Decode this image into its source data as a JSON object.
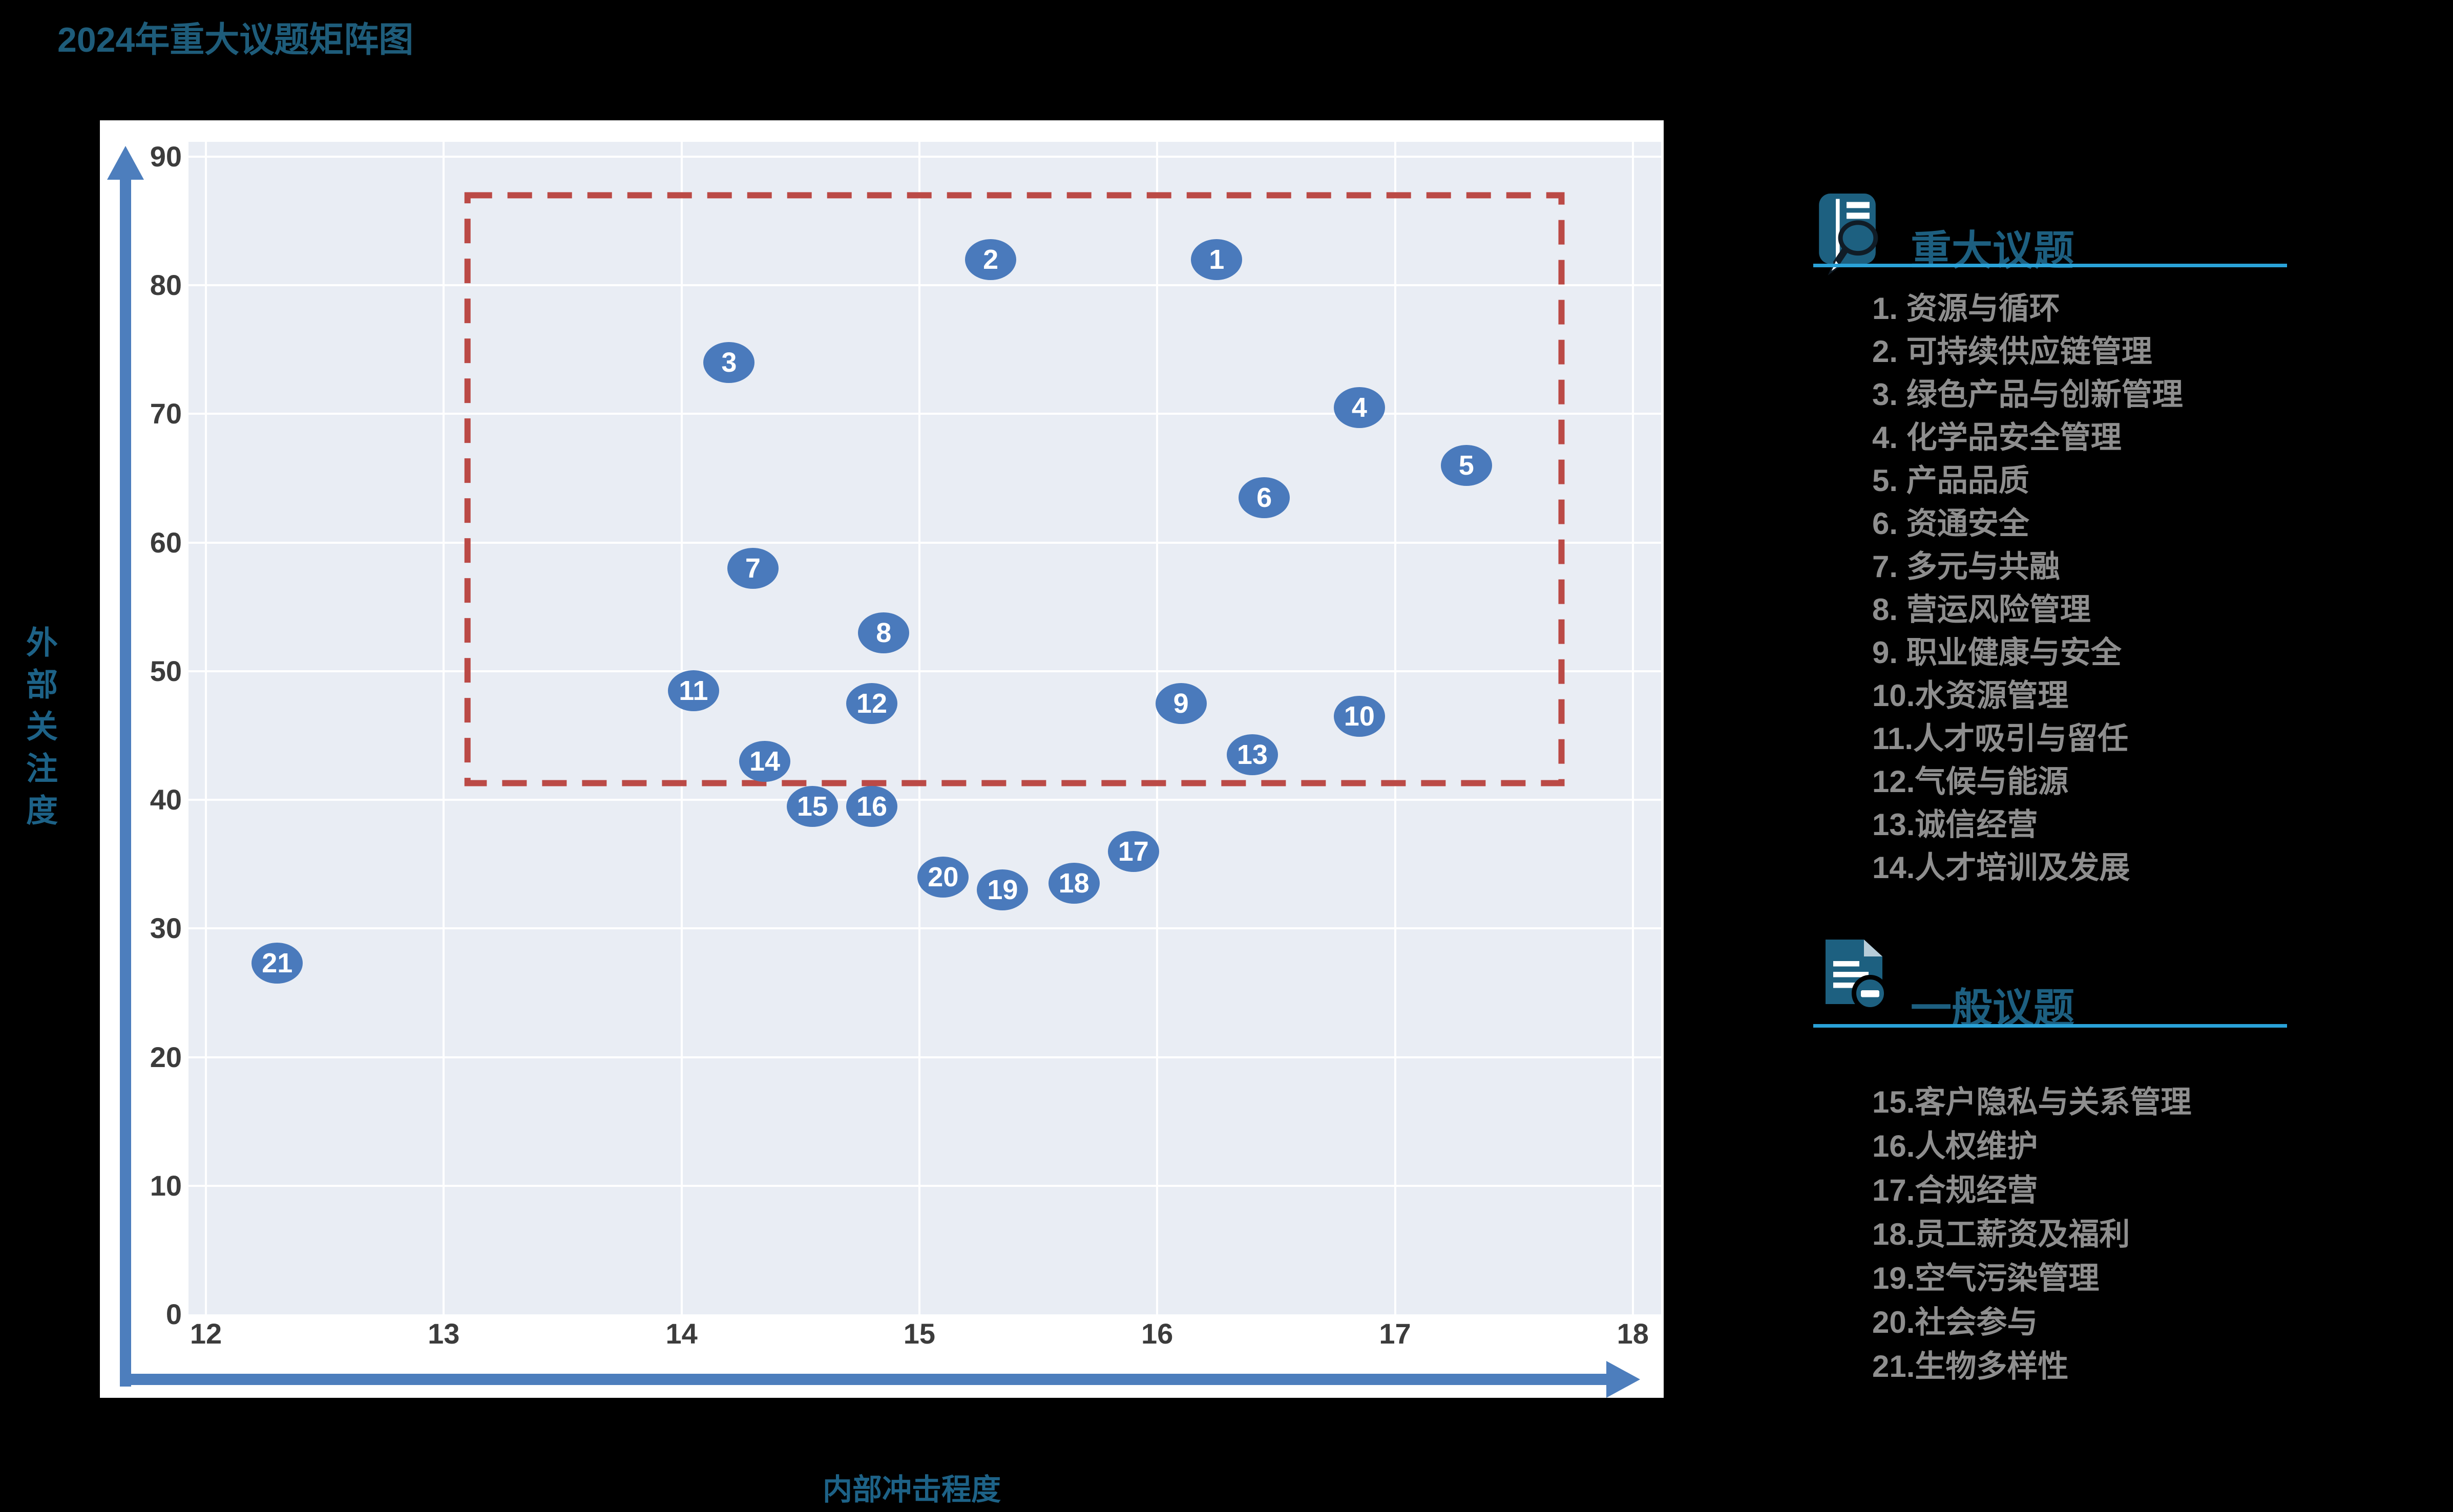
{
  "page_title": "2024年重大议题矩阵图",
  "chart_data": {
    "type": "scatter",
    "title": "2024年重大议题矩阵图",
    "xlabel": "内部冲击程度",
    "ylabel": "外部关注度",
    "xlim": [
      12,
      18
    ],
    "ylim": [
      0,
      90
    ],
    "x_ticks": [
      12,
      13,
      14,
      15,
      16,
      17,
      18
    ],
    "y_ticks": [
      0,
      10,
      20,
      30,
      40,
      50,
      60,
      70,
      80,
      90
    ],
    "grid": true,
    "legend_position": "right",
    "highlight_box": {
      "x_min": 13.1,
      "x_max": 17.7,
      "y_min": 41.3,
      "y_max": 87,
      "style": "dashed",
      "color": "#bb4a46"
    },
    "points": [
      {
        "n": 1,
        "label": "资源与循环",
        "x": 16.25,
        "y": 82
      },
      {
        "n": 2,
        "label": "可持续供应链管理",
        "x": 15.3,
        "y": 82
      },
      {
        "n": 3,
        "label": "绿色产品与创新管理",
        "x": 14.2,
        "y": 74
      },
      {
        "n": 4,
        "label": "化学品安全管理",
        "x": 16.85,
        "y": 70.5
      },
      {
        "n": 5,
        "label": "产品品质",
        "x": 17.3,
        "y": 66
      },
      {
        "n": 6,
        "label": "资通安全",
        "x": 16.45,
        "y": 63.5
      },
      {
        "n": 7,
        "label": "多元与共融",
        "x": 14.3,
        "y": 58
      },
      {
        "n": 8,
        "label": "营运风险管理",
        "x": 14.85,
        "y": 53
      },
      {
        "n": 9,
        "label": "职业健康与安全",
        "x": 16.1,
        "y": 47.5
      },
      {
        "n": 10,
        "label": "水资源管理",
        "x": 16.85,
        "y": 46.5
      },
      {
        "n": 11,
        "label": "人才吸引与留任",
        "x": 14.05,
        "y": 48.5
      },
      {
        "n": 12,
        "label": "气候与能源",
        "x": 14.8,
        "y": 47.5
      },
      {
        "n": 13,
        "label": "诚信经营",
        "x": 16.4,
        "y": 43.5
      },
      {
        "n": 14,
        "label": "人才培训及发展",
        "x": 14.35,
        "y": 43
      },
      {
        "n": 15,
        "label": "客户隐私与关系管理",
        "x": 14.55,
        "y": 39.5
      },
      {
        "n": 16,
        "label": "人权维护",
        "x": 14.8,
        "y": 39.5
      },
      {
        "n": 17,
        "label": "合规经营",
        "x": 15.9,
        "y": 36
      },
      {
        "n": 18,
        "label": "员工薪资及福利",
        "x": 15.65,
        "y": 33.5
      },
      {
        "n": 19,
        "label": "空气污染管理",
        "x": 15.35,
        "y": 33
      },
      {
        "n": 20,
        "label": "社会参与",
        "x": 15.1,
        "y": 34
      },
      {
        "n": 21,
        "label": "生物多样性",
        "x": 12.3,
        "y": 27.3
      }
    ]
  },
  "legend": {
    "major": {
      "header": "重大议题",
      "icon": "document-magnifier-icon",
      "items": [
        {
          "num": 1,
          "label": "资源与循环"
        },
        {
          "num": 2,
          "label": "可持续供应链管理"
        },
        {
          "num": 3,
          "label": "绿色产品与创新管理"
        },
        {
          "num": 4,
          "label": "化学品安全管理"
        },
        {
          "num": 5,
          "label": "产品品质"
        },
        {
          "num": 6,
          "label": "资通安全"
        },
        {
          "num": 7,
          "label": "多元与共融"
        },
        {
          "num": 8,
          "label": "营运风险管理"
        },
        {
          "num": 9,
          "label": "职业健康与安全"
        },
        {
          "num": 10,
          "label": "水资源管理"
        },
        {
          "num": 11,
          "label": "人才吸引与留任"
        },
        {
          "num": 12,
          "label": "气候与能源"
        },
        {
          "num": 13,
          "label": "诚信经营"
        },
        {
          "num": 14,
          "label": "人才培训及发展"
        }
      ]
    },
    "general": {
      "header": "一般议题",
      "icon": "document-minus-icon",
      "items": [
        {
          "num": 15,
          "label": "客户隐私与关系管理"
        },
        {
          "num": 16,
          "label": "人权维护"
        },
        {
          "num": 17,
          "label": "合规经营"
        },
        {
          "num": 18,
          "label": "员工薪资及福利"
        },
        {
          "num": 19,
          "label": "空气污染管理"
        },
        {
          "num": 20,
          "label": "社会参与"
        },
        {
          "num": 21,
          "label": "生物多样性"
        }
      ]
    }
  },
  "colors": {
    "background": "#000000",
    "panel": "#ffffff",
    "plot_background": "#e9edf4",
    "gridline": "#ffffff",
    "bubble": "#4a7abc",
    "bubble_text": "#ffffff",
    "highlight_box": "#bb4a46",
    "axis_arrow": "#4d7ebd",
    "title_text": "#1e5c7a",
    "axis_title_text": "#1d6287",
    "tick_text": "#3c3c3c",
    "legend_header_text": "#1d5f80",
    "legend_underline": "#2aa2d8",
    "legend_item_text": "#8e8e8e",
    "icon_teal": "#1d6080"
  }
}
